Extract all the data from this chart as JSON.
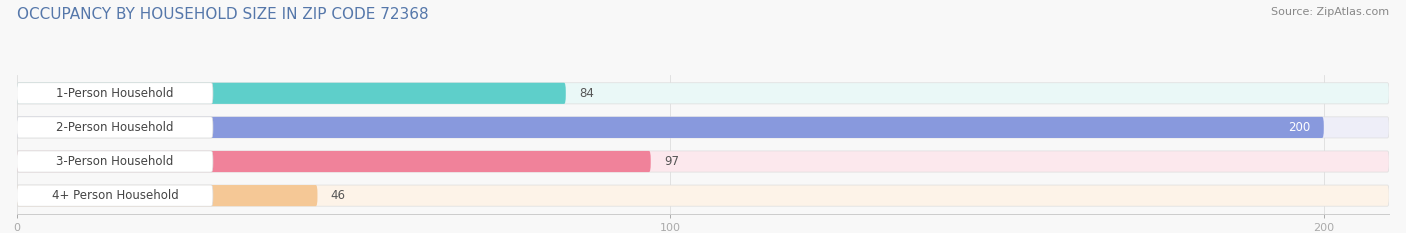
{
  "title": "OCCUPANCY BY HOUSEHOLD SIZE IN ZIP CODE 72368",
  "source": "Source: ZipAtlas.com",
  "categories": [
    "1-Person Household",
    "2-Person Household",
    "3-Person Household",
    "4+ Person Household"
  ],
  "values": [
    84,
    200,
    97,
    46
  ],
  "bar_colors": [
    "#5ecfca",
    "#8899dd",
    "#f0829a",
    "#f5c896"
  ],
  "bg_colors": [
    "#eaf8f7",
    "#eeeef8",
    "#fce8ed",
    "#fdf3e8"
  ],
  "label_bg_color": "#ffffff",
  "xlim_min": 0,
  "xlim_max": 210,
  "xticks": [
    0,
    100,
    200
  ],
  "bar_height": 0.62,
  "label_fontsize": 8.5,
  "title_fontsize": 11,
  "source_fontsize": 8,
  "figsize": [
    14.06,
    2.33
  ],
  "dpi": 100,
  "title_color": "#5577aa",
  "source_color": "#888888",
  "label_text_color": "#555555",
  "value_white_threshold": 195
}
